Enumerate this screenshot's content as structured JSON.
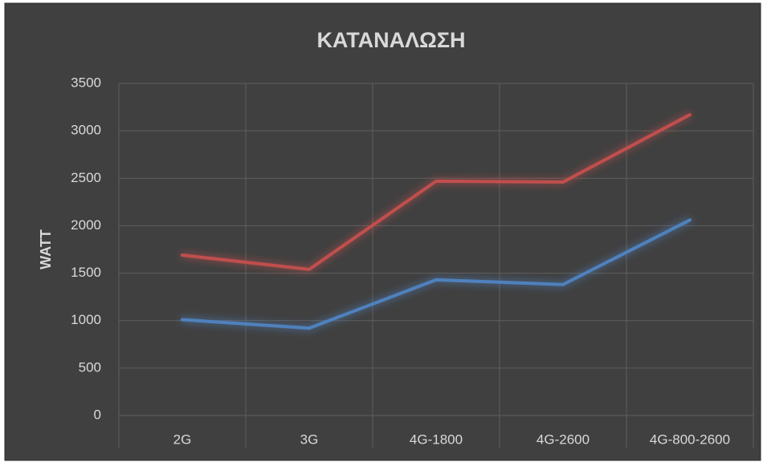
{
  "chart_data": {
    "type": "line",
    "title": "ΚΑΤΑΝΑΛΩΣΗ",
    "y_label": "WATT",
    "categories": [
      "2G",
      "3G",
      "4G-1800",
      "4G-2600",
      "4G-800-2600"
    ],
    "series": [
      {
        "color": "#c0504d",
        "values": [
          1690,
          1540,
          2470,
          2460,
          3170
        ]
      },
      {
        "color": "#4f81bd",
        "values": [
          1010,
          920,
          1430,
          1380,
          2060
        ]
      }
    ],
    "ylim": [
      0,
      3500
    ],
    "yticks": [
      0,
      500,
      1000,
      1500,
      2000,
      2500,
      3000,
      3500
    ],
    "grid": true
  }
}
